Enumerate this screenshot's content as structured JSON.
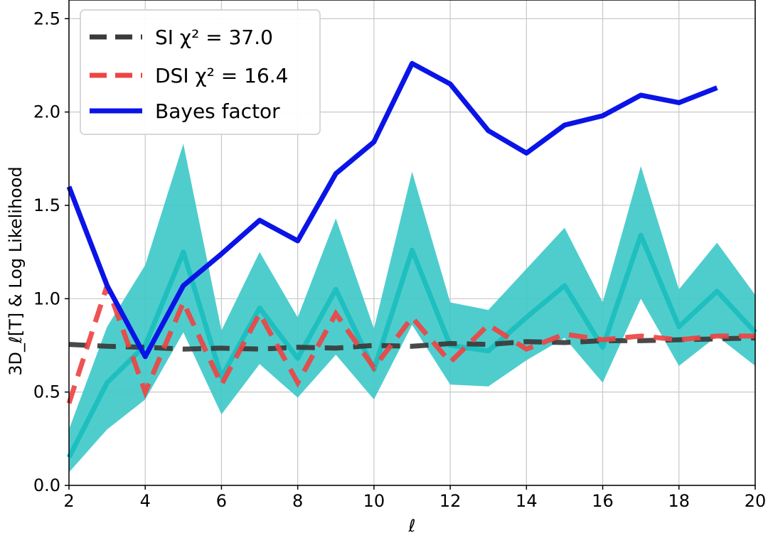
{
  "chart_data": {
    "type": "line",
    "xlabel": "ℓ",
    "ylabel": "3D_ℓ[T]   &   Log Likelihood",
    "xlim": [
      2,
      20
    ],
    "ylim": [
      0,
      2.6
    ],
    "grid": true,
    "x_ticks": [
      2,
      4,
      6,
      8,
      10,
      12,
      14,
      16,
      18,
      20
    ],
    "x_tick_labels": [
      "2",
      "4",
      "6",
      "8",
      "10",
      "12",
      "14",
      "16",
      "18",
      "20"
    ],
    "y_ticks": [
      0,
      0.5,
      1.0,
      1.5,
      2.0,
      2.5
    ],
    "y_tick_labels": [
      "0.0",
      "0.5",
      "1.0",
      "1.5",
      "2.0",
      "2.5"
    ],
    "legend": {
      "position": "upper-left",
      "entries": [
        {
          "series": "si",
          "label": "SI χ² = 37.0"
        },
        {
          "series": "dsi",
          "label": "DSI χ² = 16.4"
        },
        {
          "series": "bayes",
          "label": "Bayes factor"
        }
      ]
    },
    "band": {
      "color": "#3cc8c8",
      "line_color": "#1fbfbf",
      "x": [
        2,
        3,
        4,
        5,
        6,
        7,
        8,
        9,
        10,
        11,
        12,
        13,
        14,
        15,
        16,
        17,
        18,
        19,
        20
      ],
      "center": [
        0.15,
        0.55,
        0.75,
        1.25,
        0.58,
        0.95,
        0.68,
        1.05,
        0.62,
        1.26,
        0.75,
        0.72,
        0.9,
        1.07,
        0.74,
        1.34,
        0.85,
        1.04,
        0.82
      ],
      "upper": [
        0.3,
        0.85,
        1.18,
        1.83,
        0.83,
        1.25,
        0.9,
        1.43,
        0.84,
        1.68,
        0.98,
        0.94,
        1.16,
        1.38,
        0.98,
        1.71,
        1.05,
        1.3,
        1.02
      ],
      "lower": [
        0.07,
        0.3,
        0.46,
        0.82,
        0.38,
        0.65,
        0.47,
        0.7,
        0.46,
        0.86,
        0.54,
        0.53,
        0.67,
        0.79,
        0.55,
        1.0,
        0.64,
        0.8,
        0.64
      ]
    },
    "series": [
      {
        "id": "si",
        "name": "SI χ² = 37.0",
        "color": "#3a3a3a",
        "style": "dashed",
        "x": [
          2,
          3,
          4,
          5,
          6,
          7,
          8,
          9,
          10,
          11,
          12,
          13,
          14,
          15,
          16,
          17,
          18,
          19,
          20
        ],
        "y": [
          0.755,
          0.745,
          0.74,
          0.73,
          0.735,
          0.73,
          0.74,
          0.735,
          0.75,
          0.745,
          0.76,
          0.755,
          0.77,
          0.765,
          0.775,
          0.775,
          0.78,
          0.785,
          0.79
        ]
      },
      {
        "id": "dsi",
        "name": "DSI χ² = 16.4",
        "color": "#ee4444",
        "style": "dashed",
        "x": [
          2,
          3,
          4,
          5,
          6,
          7,
          8,
          9,
          10,
          11,
          12,
          13,
          14,
          15,
          16,
          17,
          18,
          19,
          20
        ],
        "y": [
          0.44,
          1.07,
          0.5,
          0.98,
          0.54,
          0.92,
          0.55,
          0.92,
          0.63,
          0.9,
          0.66,
          0.86,
          0.73,
          0.81,
          0.78,
          0.8,
          0.78,
          0.8,
          0.8
        ]
      },
      {
        "id": "bayes",
        "name": "Bayes factor",
        "color": "#0a14e6",
        "style": "solid",
        "x": [
          2,
          3,
          4,
          5,
          6,
          7,
          8,
          9,
          10,
          11,
          12,
          13,
          14,
          15,
          16,
          17,
          18,
          19
        ],
        "y": [
          1.6,
          1.07,
          0.69,
          1.07,
          1.24,
          1.42,
          1.31,
          1.67,
          1.84,
          2.26,
          2.15,
          1.9,
          1.78,
          1.93,
          1.98,
          2.09,
          2.05,
          2.13
        ]
      }
    ]
  }
}
